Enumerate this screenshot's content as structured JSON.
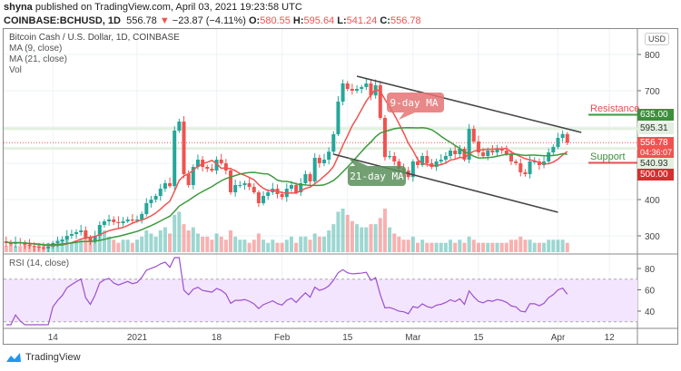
{
  "header": {
    "publisher": "shyna",
    "published_text": "published on TradingView.com, April 03, 2021 19:23:58 UTC",
    "symbol": "COINBASE:BCHUSD, 1D",
    "last": "556.78",
    "change": "−23.87 (−4.11%)",
    "o_label": "O:",
    "o": "580.55",
    "h_label": "H:",
    "h": "595.64",
    "l_label": "L:",
    "l": "541.24",
    "c_label": "C:",
    "c": "556.78"
  },
  "legend": {
    "title": "Bitcoin Cash / U.S. Dollar, 1D, COINBASE",
    "ma9": "MA (9, close)",
    "ma21": "MA (21, close)",
    "vol": "Vol",
    "rsi": "RSI (14, close)"
  },
  "price_axis": {
    "currency": "USD",
    "ticks": [
      "800",
      "700",
      "400",
      "300"
    ],
    "labels": {
      "resistance_level": "635.00",
      "high_line": "595.31",
      "last_price": "556.78",
      "countdown": "04:36:07",
      "low_line": "540.93",
      "support_level": "500.00"
    }
  },
  "annotations": {
    "ma9_label": "9-day MA",
    "ma21_label": "21-day MA",
    "resistance": "Resistance",
    "support": "Support"
  },
  "rsi_axis": {
    "ticks": [
      "80",
      "60",
      "40"
    ]
  },
  "footer": {
    "brand": "TradingView"
  },
  "colors": {
    "up": "#26a69a",
    "down": "#ef5350",
    "ma9": "#ef5350",
    "ma21": "#3d9a3d",
    "rsi": "#9c4fcf",
    "rsi_band": "#f3e5fd",
    "resistance": "#3d9a3d",
    "support": "#e05050"
  },
  "chart_data": {
    "type": "candlestick",
    "title": "Bitcoin Cash / U.S. Dollar, 1D, COINBASE",
    "start_date": "2020-12-03",
    "end_date": "2021-04-03",
    "x_ticks": [
      "14",
      "2021",
      "18",
      "Feb",
      "15",
      "Mar",
      "15",
      "Apr",
      "12"
    ],
    "y_ticks": [
      800,
      700,
      400,
      300
    ],
    "ylim": [
      250,
      830
    ],
    "close": [
      285,
      280,
      278,
      282,
      280,
      276,
      272,
      270,
      268,
      265,
      270,
      280,
      285,
      290,
      300,
      305,
      310,
      315,
      295,
      285,
      300,
      330,
      340,
      345,
      338,
      335,
      340,
      345,
      342,
      345,
      360,
      390,
      400,
      410,
      430,
      445,
      437,
      590,
      615,
      470,
      440,
      490,
      510,
      490,
      485,
      480,
      510,
      500,
      480,
      420,
      440,
      440,
      445,
      435,
      420,
      390,
      410,
      420,
      430,
      415,
      407,
      430,
      440,
      420,
      445,
      470,
      450,
      515,
      500,
      510,
      532,
      580,
      670,
      720,
      705,
      700,
      705,
      710,
      720,
      687,
      715,
      625,
      517,
      520,
      505,
      485,
      480,
      462,
      505,
      495,
      520,
      500,
      490,
      505,
      510,
      520,
      535,
      525,
      540,
      510,
      595,
      560,
      530,
      520,
      535,
      530,
      540,
      535,
      525,
      505,
      500,
      475,
      470,
      505,
      505,
      495,
      505,
      530,
      545,
      570,
      580.55,
      556.78
    ],
    "volume_relative": [
      3,
      2,
      3,
      2,
      2,
      3,
      2,
      2,
      3,
      2,
      3,
      3,
      4,
      4,
      5,
      3,
      3,
      4,
      6,
      5,
      4,
      6,
      7,
      5,
      4,
      3,
      4,
      4,
      3,
      4,
      5,
      7,
      6,
      5,
      7,
      8,
      6,
      12,
      13,
      9,
      7,
      8,
      6,
      5,
      5,
      4,
      6,
      5,
      4,
      7,
      5,
      4,
      4,
      3,
      4,
      6,
      4,
      3,
      4,
      3,
      3,
      4,
      5,
      3,
      5,
      5,
      4,
      6,
      5,
      5,
      7,
      9,
      13,
      14,
      12,
      10,
      9,
      8,
      8,
      9,
      9,
      11,
      14,
      8,
      6,
      5,
      4,
      4,
      5,
      3,
      4,
      3,
      3,
      3,
      3,
      3,
      4,
      3,
      4,
      3,
      5,
      4,
      3,
      3,
      3,
      3,
      3,
      3,
      3,
      4,
      4,
      5,
      4,
      4,
      3,
      3,
      3,
      4,
      4,
      4,
      4,
      3
    ],
    "moving_averages": [
      {
        "name": "MA (9, close)",
        "period": 9
      },
      {
        "name": "MA (21, close)",
        "period": 21
      }
    ],
    "rsi": {
      "name": "RSI (14, close)",
      "period": 14,
      "ylim": [
        25,
        85
      ],
      "bands": [
        30,
        70
      ]
    },
    "trendlines": [
      {
        "from": [
          "2021-02-17",
          740
        ],
        "to": [
          "2021-04-06",
          585
        ]
      },
      {
        "from": [
          "2021-02-12",
          525
        ],
        "to": [
          "2021-04-01",
          365
        ]
      }
    ],
    "levels": {
      "resistance": 635.0,
      "support": 500.0
    }
  }
}
